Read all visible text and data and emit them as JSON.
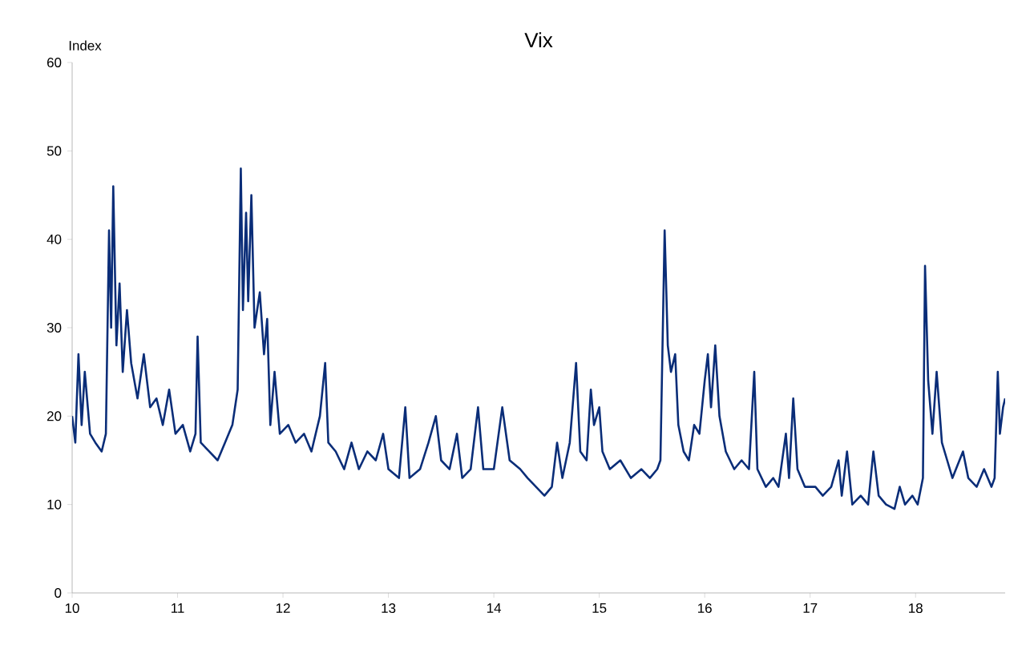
{
  "chart_data": {
    "type": "line",
    "title": "Vix",
    "ylabel": "Index",
    "xlim": [
      2010,
      2018.85
    ],
    "ylim": [
      0,
      60
    ],
    "xticks": [
      {
        "value": 2010,
        "label": "10"
      },
      {
        "value": 2011,
        "label": "11"
      },
      {
        "value": 2012,
        "label": "12"
      },
      {
        "value": 2013,
        "label": "13"
      },
      {
        "value": 2014,
        "label": "14"
      },
      {
        "value": 2015,
        "label": "15"
      },
      {
        "value": 2016,
        "label": "16"
      },
      {
        "value": 2017,
        "label": "17"
      },
      {
        "value": 2018,
        "label": "18"
      }
    ],
    "yticks": [
      0,
      10,
      20,
      30,
      40,
      50,
      60
    ],
    "grid": false,
    "marker": "none",
    "line_style": "solid",
    "series": [
      {
        "color": "#0a2d78",
        "x": [
          2010.0,
          2010.03,
          2010.06,
          2010.09,
          2010.12,
          2010.17,
          2010.22,
          2010.28,
          2010.32,
          2010.35,
          2010.37,
          2010.39,
          2010.42,
          2010.45,
          2010.48,
          2010.52,
          2010.56,
          2010.62,
          2010.68,
          2010.74,
          2010.8,
          2010.86,
          2010.92,
          2010.98,
          2011.05,
          2011.12,
          2011.17,
          2011.19,
          2011.22,
          2011.3,
          2011.38,
          2011.45,
          2011.52,
          2011.57,
          2011.6,
          2011.62,
          2011.65,
          2011.67,
          2011.7,
          2011.73,
          2011.78,
          2011.82,
          2011.85,
          2011.88,
          2011.92,
          2011.97,
          2012.05,
          2012.12,
          2012.2,
          2012.27,
          2012.35,
          2012.4,
          2012.43,
          2012.5,
          2012.58,
          2012.65,
          2012.72,
          2012.8,
          2012.88,
          2012.95,
          2013.0,
          2013.1,
          2013.16,
          2013.2,
          2013.3,
          2013.38,
          2013.45,
          2013.5,
          2013.58,
          2013.65,
          2013.7,
          2013.78,
          2013.85,
          2013.9,
          2014.0,
          2014.08,
          2014.15,
          2014.25,
          2014.32,
          2014.4,
          2014.48,
          2014.55,
          2014.6,
          2014.65,
          2014.72,
          2014.78,
          2014.82,
          2014.88,
          2014.92,
          2014.95,
          2015.0,
          2015.03,
          2015.1,
          2015.2,
          2015.3,
          2015.4,
          2015.48,
          2015.55,
          2015.58,
          2015.62,
          2015.65,
          2015.68,
          2015.72,
          2015.75,
          2015.8,
          2015.85,
          2015.9,
          2015.95,
          2016.0,
          2016.03,
          2016.06,
          2016.1,
          2016.14,
          2016.2,
          2016.28,
          2016.35,
          2016.42,
          2016.47,
          2016.5,
          2016.58,
          2016.65,
          2016.7,
          2016.77,
          2016.8,
          2016.84,
          2016.88,
          2016.95,
          2017.05,
          2017.12,
          2017.2,
          2017.27,
          2017.3,
          2017.35,
          2017.4,
          2017.48,
          2017.55,
          2017.6,
          2017.65,
          2017.72,
          2017.8,
          2017.85,
          2017.9,
          2017.97,
          2018.02,
          2018.07,
          2018.09,
          2018.12,
          2018.16,
          2018.2,
          2018.25,
          2018.3,
          2018.35,
          2018.45,
          2018.5,
          2018.58,
          2018.65,
          2018.72,
          2018.75,
          2018.78,
          2018.8,
          2018.83,
          2018.85
        ],
        "values": [
          20,
          17,
          27,
          19,
          25,
          18,
          17,
          16,
          18,
          41,
          30,
          46,
          28,
          35,
          25,
          32,
          26,
          22,
          27,
          21,
          22,
          19,
          23,
          18,
          19,
          16,
          18,
          29,
          17,
          16,
          15,
          17,
          19,
          23,
          48,
          32,
          43,
          33,
          45,
          30,
          34,
          27,
          31,
          19,
          25,
          18,
          19,
          17,
          18,
          16,
          20,
          26,
          17,
          16,
          14,
          17,
          14,
          16,
          15,
          18,
          14,
          13,
          21,
          13,
          14,
          17,
          20,
          15,
          14,
          18,
          13,
          14,
          21,
          14,
          14,
          21,
          15,
          14,
          13,
          12,
          11,
          12,
          17,
          13,
          17,
          26,
          16,
          15,
          23,
          19,
          21,
          16,
          14,
          15,
          13,
          14,
          13,
          14,
          15,
          41,
          28,
          25,
          27,
          19,
          16,
          15,
          19,
          18,
          24,
          27,
          21,
          28,
          20,
          16,
          14,
          15,
          14,
          25,
          14,
          12,
          13,
          12,
          18,
          13,
          22,
          14,
          12,
          12,
          11,
          12,
          15,
          11,
          16,
          10,
          11,
          10,
          16,
          11,
          10,
          9.5,
          12,
          10,
          11,
          10,
          13,
          37,
          24,
          18,
          25,
          17,
          15,
          13,
          16,
          13,
          12,
          14,
          12,
          13,
          25,
          18,
          21,
          22
        ]
      }
    ]
  }
}
